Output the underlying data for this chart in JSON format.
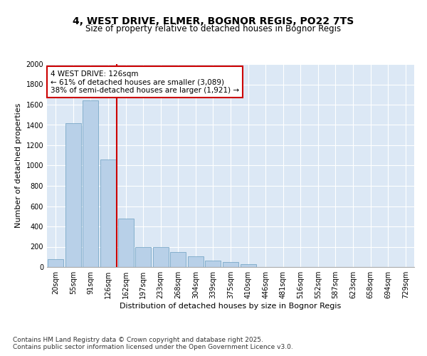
{
  "title_line1": "4, WEST DRIVE, ELMER, BOGNOR REGIS, PO22 7TS",
  "title_line2": "Size of property relative to detached houses in Bognor Regis",
  "xlabel": "Distribution of detached houses by size in Bognor Regis",
  "ylabel": "Number of detached properties",
  "categories": [
    "20sqm",
    "55sqm",
    "91sqm",
    "126sqm",
    "162sqm",
    "197sqm",
    "233sqm",
    "268sqm",
    "304sqm",
    "339sqm",
    "375sqm",
    "410sqm",
    "446sqm",
    "481sqm",
    "516sqm",
    "552sqm",
    "587sqm",
    "623sqm",
    "658sqm",
    "694sqm",
    "729sqm"
  ],
  "values": [
    75,
    1420,
    1640,
    1060,
    475,
    200,
    195,
    150,
    105,
    65,
    50,
    30,
    0,
    0,
    0,
    0,
    0,
    0,
    0,
    0,
    0
  ],
  "bar_color": "#b8d0e8",
  "bar_edge_color": "#6a9ec0",
  "vline_x_index": 3,
  "vline_color": "#cc0000",
  "annotation_line1": "4 WEST DRIVE: 126sqm",
  "annotation_line2": "← 61% of detached houses are smaller (3,089)",
  "annotation_line3": "38% of semi-detached houses are larger (1,921) →",
  "annotation_box_color": "#ffffff",
  "annotation_box_edge": "#cc0000",
  "ylim": [
    0,
    2000
  ],
  "yticks": [
    0,
    200,
    400,
    600,
    800,
    1000,
    1200,
    1400,
    1600,
    1800,
    2000
  ],
  "background_color": "#dce8f5",
  "footer_line1": "Contains HM Land Registry data © Crown copyright and database right 2025.",
  "footer_line2": "Contains public sector information licensed under the Open Government Licence v3.0.",
  "title_fontsize": 10,
  "subtitle_fontsize": 8.5,
  "axis_label_fontsize": 8,
  "tick_fontsize": 7,
  "annotation_fontsize": 7.5,
  "footer_fontsize": 6.5
}
